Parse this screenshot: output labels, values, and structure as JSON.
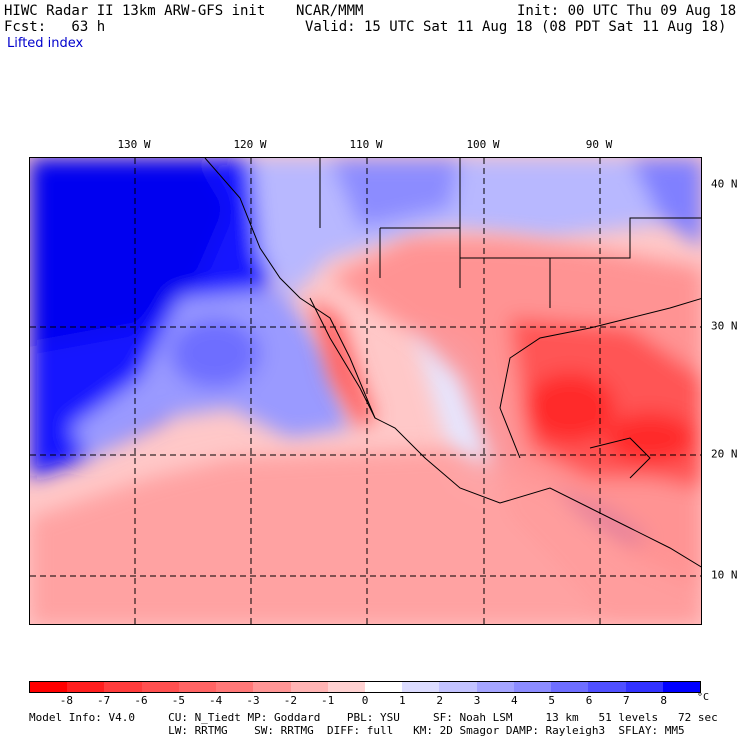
{
  "header": {
    "model_title": "HIWC Radar II 13km ARW-GFS init",
    "org": "NCAR/MMM",
    "forecast": "Fcst:   63 h",
    "init": "Init: 00 UTC Thu 09 Aug 18",
    "valid": "Valid: 15 UTC Sat 11 Aug 18 (08 PDT Sat 11 Aug 18)",
    "field": "Lifted index"
  },
  "map": {
    "longitude_labels": [
      "130 W",
      "120 W",
      "110 W",
      "100 W",
      "90 W"
    ],
    "latitude_labels": [
      "40 N",
      "30 N",
      "20 N",
      "10 N"
    ]
  },
  "colorbar": {
    "levels": [
      "-8",
      "-7",
      "-6",
      "-5",
      "-4",
      "-3",
      "-2",
      "-1",
      "0",
      "1",
      "2",
      "3",
      "4",
      "5",
      "6",
      "7",
      "8"
    ],
    "unit": "°C",
    "colors": [
      "#ff0000",
      "#ff1e1e",
      "#ff3c3c",
      "#ff5050",
      "#ff6464",
      "#ff7878",
      "#ff9696",
      "#ffb4b4",
      "#ffd2d2",
      "#ffffff",
      "#dcdcff",
      "#c3c3ff",
      "#a5a5ff",
      "#8c8cff",
      "#6e6eff",
      "#5050ff",
      "#3232ff",
      "#0000ff"
    ]
  },
  "footer": {
    "line1": "Model Info: V4.0     CU: N_Tiedt MP: Goddard    PBL: YSU     SF: Noah LSM     13 km   51 levels   72 sec",
    "line2": "                     LW: RRTMG    SW: RRTMG  DIFF: full   KM: 2D Smagor DAMP: Rayleigh3  SFLAY: MM5"
  }
}
